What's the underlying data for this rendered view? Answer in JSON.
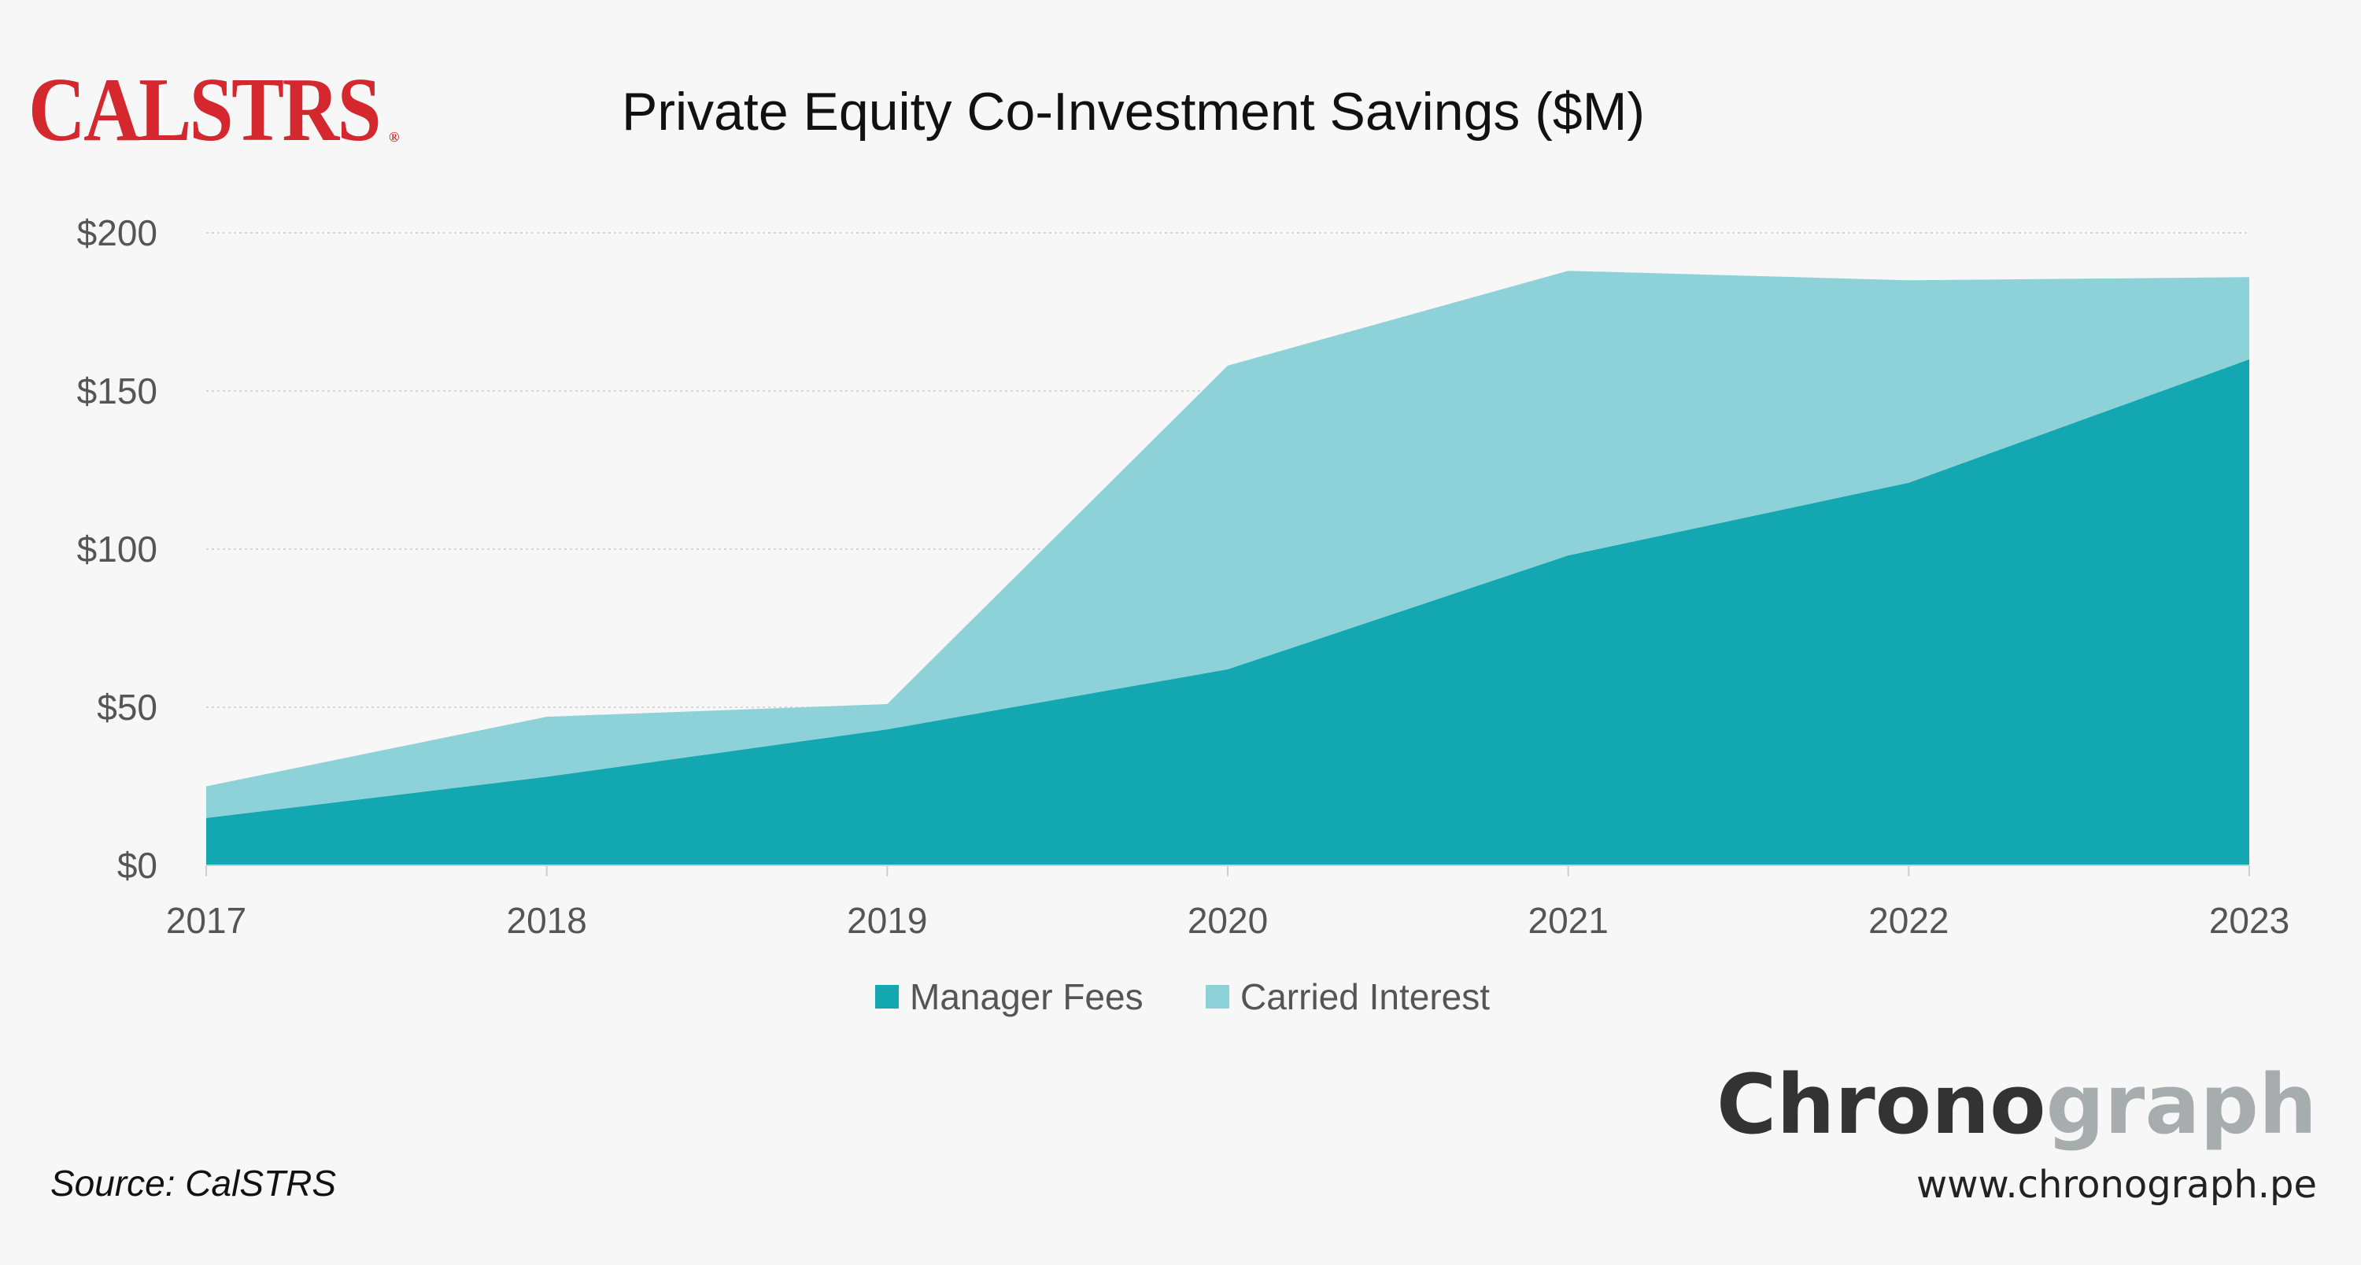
{
  "logo": {
    "text": "CALSTRS",
    "mark": "®"
  },
  "chart_data": {
    "type": "area",
    "stacked": true,
    "title": "Private Equity Co-Investment Savings ($M)",
    "x": [
      "2017",
      "2018",
      "2019",
      "2020",
      "2021",
      "2022",
      "2023"
    ],
    "series": [
      {
        "name": "Manager Fees",
        "values": [
          15,
          28,
          43,
          62,
          98,
          121,
          160
        ],
        "color": "#13a7b1"
      },
      {
        "name": "Carried Interest",
        "values": [
          10,
          19,
          8,
          96,
          90,
          64,
          26
        ],
        "color": "#8dd2d8"
      }
    ],
    "y_ticks": [
      "$0",
      "$50",
      "$100",
      "$150",
      "$200"
    ],
    "ylim": [
      0,
      200
    ],
    "y_tick_values": [
      0,
      50,
      100,
      150,
      200
    ],
    "grid": true,
    "legend_position": "bottom-center"
  },
  "footer": {
    "source": "Source: CalSTRS",
    "brand_dark": "Chrono",
    "brand_light": "graph",
    "brand_dark_color": "#333333",
    "brand_light_color": "#a7adae",
    "url": "www.chronograph.pe"
  }
}
